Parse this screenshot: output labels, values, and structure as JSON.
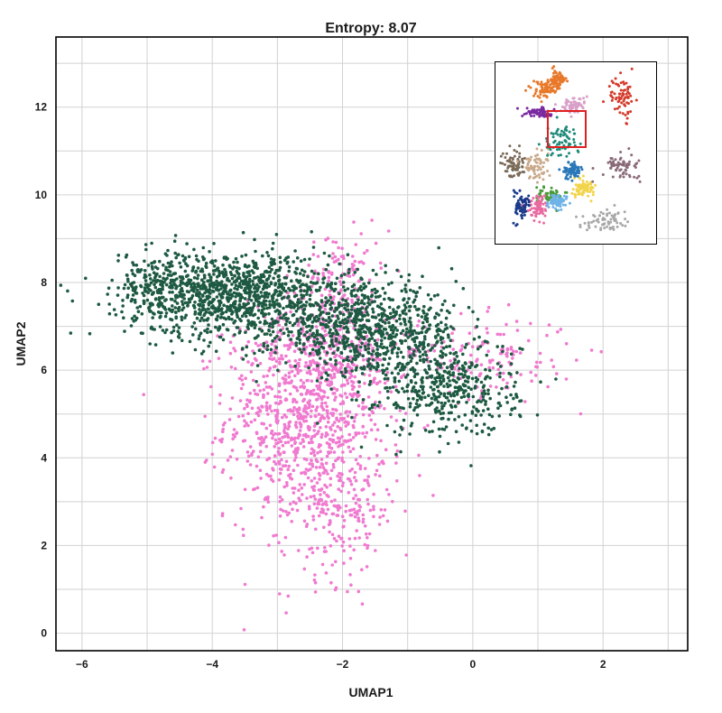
{
  "chart_data": {
    "type": "scatter",
    "title": "Entropy: 8.07",
    "xlabel": "UMAP1",
    "ylabel": "UMAP2",
    "xlim": [
      -6.4,
      3.3
    ],
    "ylim": [
      -0.4,
      13.6
    ],
    "xticks": [
      "−6",
      "−4",
      "−2",
      "0",
      "2"
    ],
    "xtick_values": [
      -6,
      -4,
      -2,
      0,
      2
    ],
    "yticks": [
      "0",
      "2",
      "4",
      "6",
      "8",
      "10",
      "12"
    ],
    "ytick_values": [
      0,
      2,
      4,
      6,
      8,
      10,
      12
    ],
    "grid": true,
    "legend": "none",
    "series": [
      {
        "color": "#f07ad0",
        "count": 1600,
        "clusters": [
          {
            "cx": -2.55,
            "cy": 4.9,
            "sx": 0.62,
            "sy": 1.15,
            "w": 0.55
          },
          {
            "cx": -2.2,
            "cy": 6.6,
            "sx": 0.55,
            "sy": 0.75,
            "w": 0.18
          },
          {
            "cx": -2.05,
            "cy": 2.8,
            "sx": 0.45,
            "sy": 0.8,
            "w": 0.12
          },
          {
            "cx": 0.1,
            "cy": 6.3,
            "sx": 0.75,
            "sy": 0.45,
            "w": 0.1
          },
          {
            "cx": -2.0,
            "cy": 8.3,
            "sx": 0.3,
            "sy": 0.45,
            "w": 0.05
          }
        ]
      },
      {
        "color": "#1e5a42",
        "count": 2400,
        "clusters": [
          {
            "cx": -3.6,
            "cy": 7.7,
            "sx": 0.85,
            "sy": 0.5,
            "w": 0.45
          },
          {
            "cx": -1.6,
            "cy": 6.9,
            "sx": 0.7,
            "sy": 0.5,
            "w": 0.3
          },
          {
            "cx": -0.4,
            "cy": 5.6,
            "sx": 0.55,
            "sy": 0.55,
            "w": 0.18
          },
          {
            "cx": -4.8,
            "cy": 7.9,
            "sx": 0.35,
            "sy": 0.35,
            "w": 0.07
          }
        ]
      }
    ]
  },
  "inset": {
    "cluster_colors": [
      "#e8792a",
      "#7a2aa0",
      "#c9a98a",
      "#d9a0c8",
      "#d33a2a",
      "#4a9a3a",
      "#f2d44a",
      "#2a78b8",
      "#1f8a7a",
      "#7a6a58",
      "#8a6a78",
      "#a8a8a8",
      "#6fb4e8",
      "#e86aa0",
      "#1a3a8a"
    ],
    "highlight_color": "#e02020"
  }
}
